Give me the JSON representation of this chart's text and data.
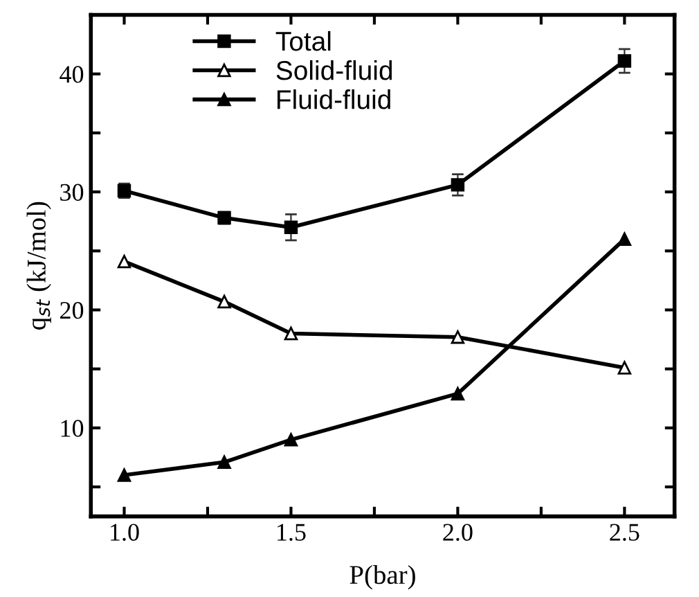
{
  "chart_data": {
    "type": "line",
    "xlabel": "P(bar)",
    "ylabel": "q$_{st}$ (kJ/mol)",
    "x": [
      1.0,
      1.3,
      1.5,
      2.0,
      2.5
    ],
    "series": [
      {
        "name": "Total",
        "color": "#000000",
        "marker": "square",
        "values": [
          30.1,
          27.8,
          27.0,
          30.6,
          41.1
        ],
        "errors": [
          0.6,
          0.5,
          1.1,
          0.9,
          1.0
        ]
      },
      {
        "name": "Solid-fluid",
        "color": "#000000",
        "marker": "triangle",
        "values": [
          24.1,
          20.7,
          18.0,
          17.7,
          15.1
        ]
      },
      {
        "name": "Fluid-fluid",
        "color": "#000000",
        "marker": "triangle",
        "values": [
          6.0,
          7.1,
          9.0,
          12.9,
          26.0
        ]
      }
    ],
    "xlim": [
      0.9,
      2.65
    ],
    "xticks": [
      {
        "value": 1.0,
        "label": "1.0"
      },
      {
        "value": 1.25,
        "label": null
      },
      {
        "value": 1.5,
        "label": "1.5"
      },
      {
        "value": 1.75,
        "label": null
      },
      {
        "value": 2.0,
        "label": "2.0"
      },
      {
        "value": 2.25,
        "label": null
      },
      {
        "value": 2.5,
        "label": "2.5"
      }
    ],
    "ylim": [
      2.5,
      45
    ],
    "yticks": [
      {
        "value": 5,
        "label": null
      },
      10,
      {
        "value": 15,
        "label": null
      },
      20,
      {
        "value": 25,
        "label": null
      },
      30,
      {
        "value": 35,
        "label": null
      },
      40
    ],
    "grid": false,
    "legend": "top left",
    "line_style": "solid"
  }
}
